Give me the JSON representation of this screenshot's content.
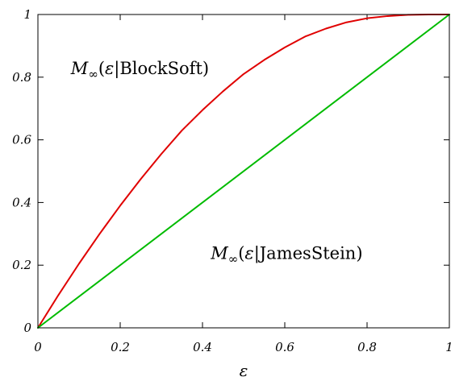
{
  "chart_data": {
    "type": "line",
    "xlabel": "ε",
    "ylabel": "",
    "xlim": [
      0,
      1
    ],
    "ylim": [
      0,
      1
    ],
    "xticks": [
      "0",
      "0.2",
      "0.4",
      "0.6",
      "0.8",
      "1"
    ],
    "yticks": [
      "0",
      "0.2",
      "0.4",
      "0.6",
      "0.8",
      "1"
    ],
    "grid": false,
    "series": [
      {
        "name": "M∞(ε|BlockSoft)",
        "color": "#e00000",
        "x": [
          0,
          0.05,
          0.1,
          0.15,
          0.2,
          0.25,
          0.3,
          0.35,
          0.4,
          0.45,
          0.5,
          0.55,
          0.6,
          0.65,
          0.7,
          0.75,
          0.8,
          0.85,
          0.9,
          0.95,
          1
        ],
        "y": [
          0,
          0.105,
          0.205,
          0.3,
          0.39,
          0.475,
          0.555,
          0.63,
          0.695,
          0.755,
          0.81,
          0.855,
          0.895,
          0.93,
          0.955,
          0.975,
          0.988,
          0.995,
          0.999,
          1.0,
          1.0
        ]
      },
      {
        "name": "M∞(ε|JamesStein)",
        "color": "#00bb00",
        "x": [
          0,
          1
        ],
        "y": [
          0,
          1
        ]
      }
    ],
    "annotations": [
      {
        "id": "blocksoft",
        "main": "M",
        "sub": "∞",
        "rest_open": "(",
        "eps": "ε",
        "rest_close": "|BlockSoft)",
        "x": 0.08,
        "y": 0.81
      },
      {
        "id": "jamesstein",
        "main": "M",
        "sub": "∞",
        "rest_open": "(",
        "eps": "ε",
        "rest_close": "|JamesStein)",
        "x": 0.42,
        "y": 0.22
      }
    ]
  }
}
